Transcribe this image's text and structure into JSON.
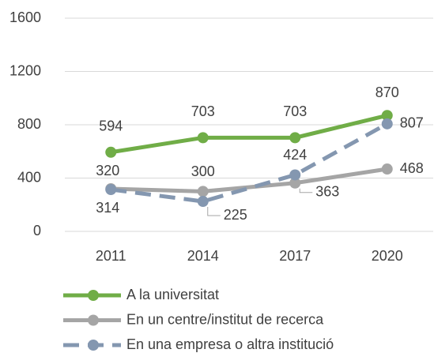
{
  "chart_data": {
    "type": "line",
    "categories": [
      "2011",
      "2014",
      "2017",
      "2020"
    ],
    "series": [
      {
        "name": "A la universitat",
        "color": "#70ad47",
        "dash": false,
        "values": [
          594,
          703,
          703,
          870
        ]
      },
      {
        "name": "En un centre/institut de recerca",
        "color": "#a5a5a5",
        "dash": false,
        "values": [
          320,
          300,
          363,
          468
        ]
      },
      {
        "name": "En una empresa o altra institució",
        "color": "#8497b0",
        "dash": true,
        "values": [
          314,
          225,
          424,
          807
        ]
      }
    ],
    "ylim": [
      0,
      1600
    ],
    "yticks": [
      0,
      400,
      800,
      1200,
      1600
    ],
    "grid": true,
    "legend": "bottom"
  }
}
